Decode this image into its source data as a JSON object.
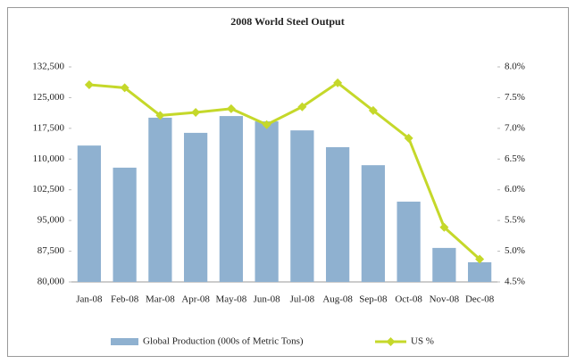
{
  "chart_data": {
    "type": "bar_line",
    "title": "2008 World Steel Output",
    "categories": [
      "Jan-08",
      "Feb-08",
      "Mar-08",
      "Apr-08",
      "May-08",
      "Jun-08",
      "Jul-08",
      "Aug-08",
      "Sep-08",
      "Oct-08",
      "Nov-08",
      "Dec-08"
    ],
    "series": [
      {
        "name": "Global Production (000s of Metric Tons)",
        "type": "bar",
        "color": "#8fb1d0",
        "values": [
          113300,
          107900,
          120100,
          116400,
          120500,
          119200,
          117000,
          112900,
          108500,
          99600,
          88300,
          84800
        ]
      },
      {
        "name": "US %",
        "type": "line",
        "axis": "y2",
        "color": "#c5d82a",
        "values": [
          7.71,
          7.66,
          7.21,
          7.26,
          7.32,
          7.06,
          7.35,
          7.74,
          7.29,
          6.84,
          5.39,
          4.87
        ]
      }
    ],
    "ylim": [
      80000,
      132500
    ],
    "yticks": [
      {
        "value": 80000,
        "label": "80,000"
      },
      {
        "value": 87500,
        "label": "87,500"
      },
      {
        "value": 95000,
        "label": "95,000"
      },
      {
        "value": 102500,
        "label": "102,500"
      },
      {
        "value": 110000,
        "label": "110,000"
      },
      {
        "value": 117500,
        "label": "117,500"
      },
      {
        "value": 125000,
        "label": "125,000"
      },
      {
        "value": 132500,
        "label": "132,500"
      }
    ],
    "y2lim": [
      4.5,
      8.0
    ],
    "y2ticks": [
      {
        "value": 4.5,
        "label": "4.5%"
      },
      {
        "value": 5.0,
        "label": "5.0%"
      },
      {
        "value": 5.5,
        "label": "5.5%"
      },
      {
        "value": 6.0,
        "label": "6.0%"
      },
      {
        "value": 6.5,
        "label": "6.5%"
      },
      {
        "value": 7.0,
        "label": "7.0%"
      },
      {
        "value": 7.5,
        "label": "7.5%"
      },
      {
        "value": 8.0,
        "label": "8.0%"
      }
    ],
    "grid": false,
    "legend": "bottom"
  }
}
